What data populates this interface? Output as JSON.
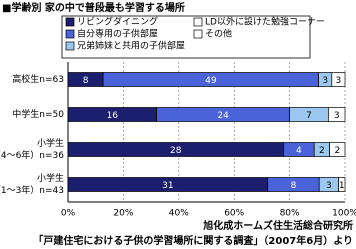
{
  "chart_data": {
    "type": "stacked_bar_100",
    "title": "■学齢別 家の中で普段最も学習する場所",
    "categories": [
      [
        "高校生n=63"
      ],
      [
        "中学生n=50"
      ],
      [
        "小学生",
        "（4～6年）n=36"
      ],
      [
        "小学生",
        "（1～3年）n=43"
      ]
    ],
    "series": [
      {
        "name": "リビングダイニング",
        "color": "#1c1f6e",
        "values": [
          8,
          16,
          28,
          31
        ]
      },
      {
        "name": "自分専用の子供部屋",
        "color": "#4a63d9",
        "values": [
          49,
          24,
          4,
          8
        ]
      },
      {
        "name": "兄弟姉妹と共用の子供部屋",
        "color": "#9cc8ef",
        "values": [
          3,
          7,
          2,
          3
        ]
      },
      {
        "name": "LD以外に設けた勉強コーナー",
        "color": "#ffffff",
        "values": [
          3,
          3,
          2,
          1
        ]
      },
      {
        "name": "その他",
        "color": "#ffffff",
        "values": [
          null,
          null,
          null,
          null
        ]
      }
    ],
    "xlim": [
      0,
      100
    ],
    "xticks": [
      {
        "value": 0,
        "label": "0%"
      },
      {
        "value": 20,
        "label": "20%"
      },
      {
        "value": 40,
        "label": "40%"
      },
      {
        "value": 60,
        "label": "60%"
      },
      {
        "value": 80,
        "label": "80%"
      },
      {
        "value": 100,
        "label": "100%"
      }
    ],
    "grid": true,
    "source": [
      "旭化成ホームズ住生活総合研究所",
      "「戸建住宅における子供の学習場所に関する調査」（2007年6月）より"
    ]
  }
}
